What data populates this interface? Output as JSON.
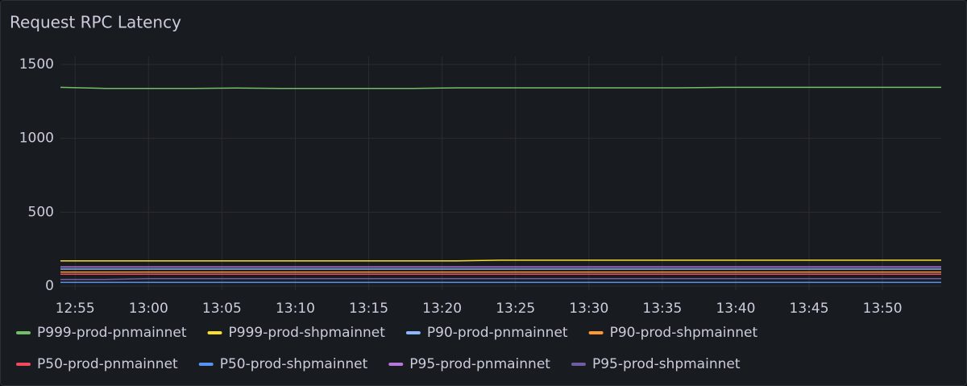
{
  "chart_data": {
    "type": "line",
    "title": "Request RPC Latency",
    "x": [
      "12:54",
      "12:57",
      "13:00",
      "13:03",
      "13:06",
      "13:09",
      "13:12",
      "13:15",
      "13:18",
      "13:21",
      "13:24",
      "13:27",
      "13:30",
      "13:33",
      "13:36",
      "13:39",
      "13:42",
      "13:45",
      "13:48",
      "13:51",
      "13:54"
    ],
    "xlim": [
      "12:54",
      "13:54"
    ],
    "xticks": [
      "12:55",
      "13:00",
      "13:05",
      "13:10",
      "13:15",
      "13:20",
      "13:25",
      "13:30",
      "13:35",
      "13:40",
      "13:45",
      "13:50"
    ],
    "ylim": [
      0,
      1500
    ],
    "yticks": [
      0,
      500,
      1000,
      1500
    ],
    "grid": true,
    "series": [
      {
        "name": "P999-prod-pnmainnet",
        "color": "#73bf69",
        "values": [
          1345,
          1338,
          1338,
          1338,
          1340,
          1338,
          1338,
          1338,
          1338,
          1342,
          1342,
          1342,
          1342,
          1342,
          1342,
          1345,
          1345,
          1345,
          1345,
          1345,
          1345
        ]
      },
      {
        "name": "P999-prod-shpmainnet",
        "color": "#fade2a",
        "values": [
          170,
          170,
          170,
          170,
          170,
          170,
          170,
          170,
          170,
          170,
          175,
          175,
          175,
          175,
          175,
          175,
          175,
          175,
          175,
          175,
          175
        ]
      },
      {
        "name": "P90-prod-pnmainnet",
        "color": "#8ab8ff",
        "values": [
          115,
          115,
          115,
          115,
          115,
          115,
          115,
          115,
          115,
          115,
          115,
          115,
          115,
          115,
          115,
          115,
          115,
          115,
          115,
          115,
          115
        ]
      },
      {
        "name": "P90-prod-shpmainnet",
        "color": "#ff9830",
        "values": [
          95,
          95,
          95,
          95,
          95,
          95,
          95,
          95,
          95,
          95,
          95,
          95,
          95,
          95,
          95,
          95,
          95,
          95,
          95,
          95,
          95
        ]
      },
      {
        "name": "P50-prod-pnmainnet",
        "color": "#f2495c",
        "values": [
          80,
          80,
          80,
          80,
          80,
          80,
          80,
          80,
          80,
          80,
          80,
          80,
          80,
          80,
          80,
          80,
          80,
          80,
          80,
          80,
          80
        ]
      },
      {
        "name": "P50-prod-shpmainnet",
        "color": "#5794f2",
        "values": [
          25,
          25,
          25,
          25,
          25,
          25,
          25,
          25,
          25,
          25,
          25,
          25,
          25,
          25,
          25,
          25,
          25,
          25,
          25,
          25,
          25
        ]
      },
      {
        "name": "P95-prod-pnmainnet",
        "color": "#b877d9",
        "values": [
          130,
          130,
          130,
          130,
          130,
          130,
          130,
          130,
          130,
          130,
          130,
          130,
          130,
          130,
          130,
          130,
          130,
          130,
          130,
          130,
          130
        ]
      },
      {
        "name": "P95-prod-shpmainnet",
        "color": "#705da0",
        "values": [
          45,
          45,
          50,
          50,
          50,
          50,
          50,
          50,
          50,
          50,
          50,
          50,
          50,
          50,
          50,
          50,
          50,
          50,
          50,
          50,
          50
        ]
      }
    ]
  }
}
